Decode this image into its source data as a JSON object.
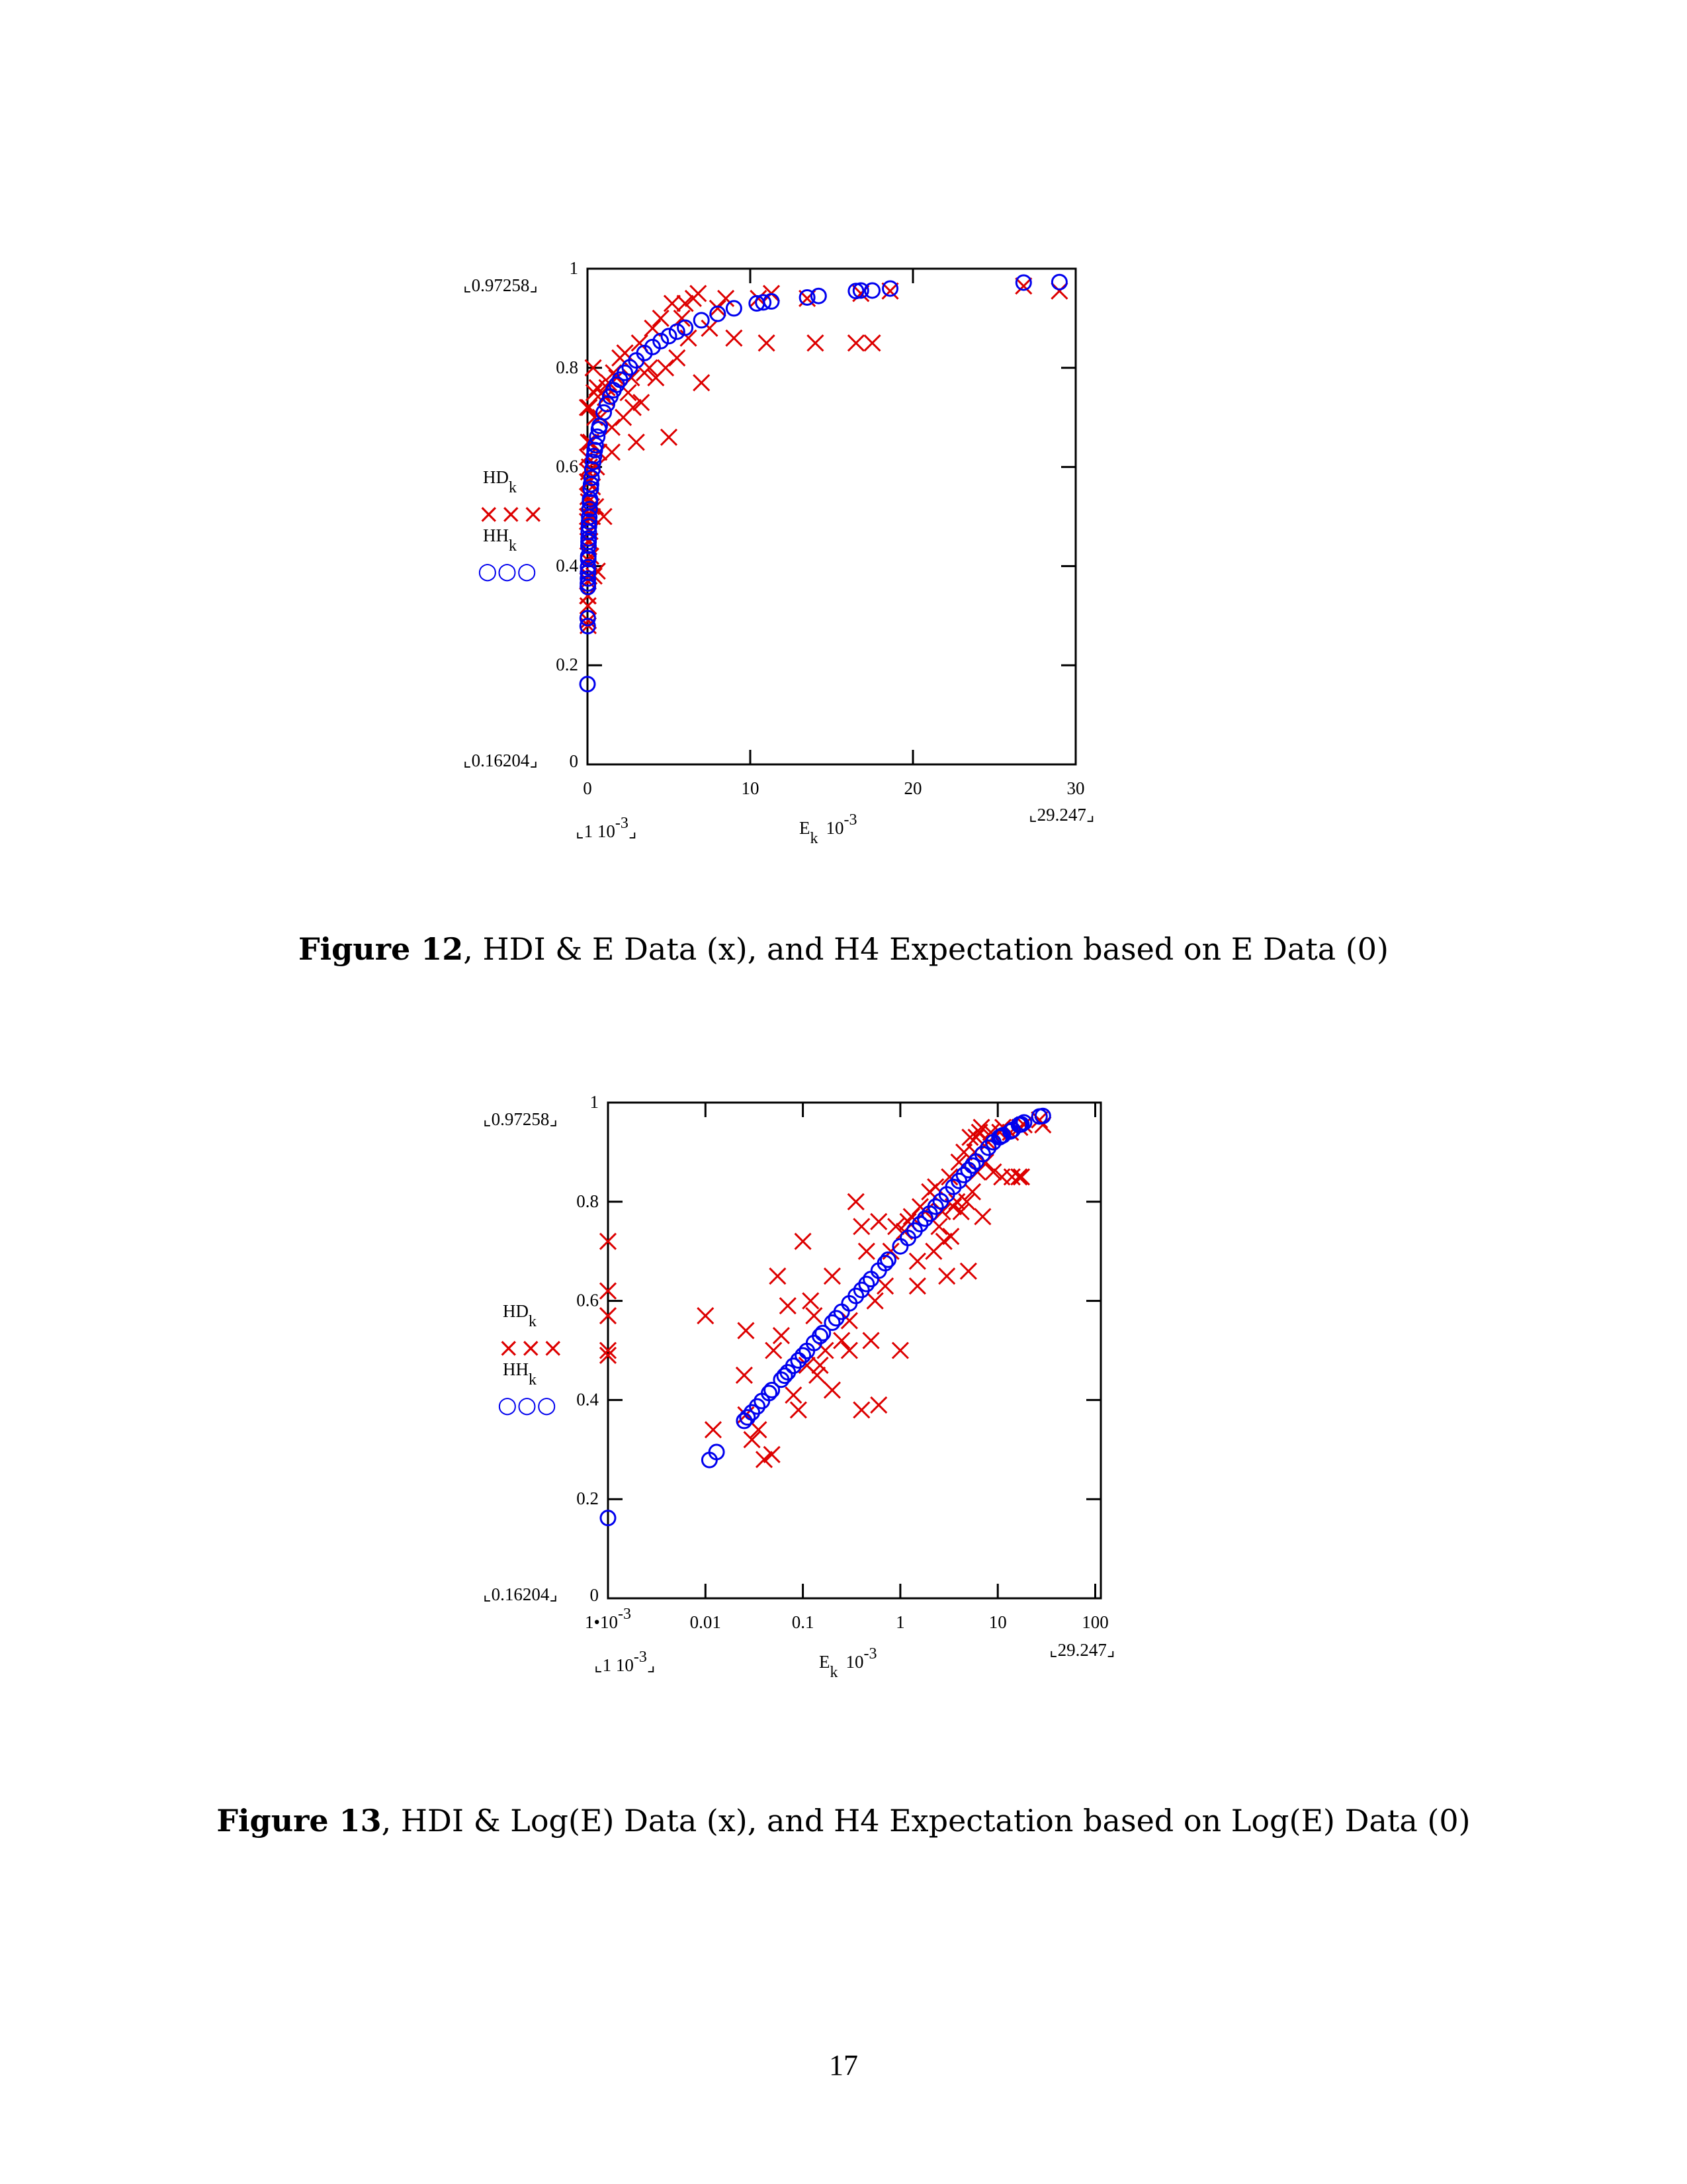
{
  "figures": [
    {
      "label": "Figure 12",
      "text": ", HDI & E Data (x), and H4 Expectation based on E Data (0)"
    },
    {
      "label": "Figure 13",
      "text": ", HDI & Log(E) Data (x), and H4 Expectation based on Log(E) Data (0)"
    }
  ],
  "page_number": "17",
  "colors": {
    "hd": "#dd0000",
    "hh": "#0000ee"
  },
  "chart_data": {
    "type": "scatter",
    "legend": {
      "hd": {
        "name": "HD",
        "sub": "k",
        "marker": "×××"
      },
      "hh": {
        "name": "HH",
        "sub": "k",
        "marker": "○○○"
      },
      "placement": "left"
    },
    "range_markers": {
      "y_max": "0.97258",
      "y_min": "0.16204",
      "x_min": "1 10",
      "x_min_exp": "-3",
      "x_max": "29.247"
    },
    "xlabel": {
      "base": "E",
      "sub": "k",
      "mult": "10",
      "exp": "-3"
    },
    "charts": [
      {
        "name": "Figure 12",
        "xscale": "linear",
        "xlim": [
          0,
          30
        ],
        "ylim": [
          0,
          1
        ],
        "xticks": [
          {
            "v": 0,
            "label": "0"
          },
          {
            "v": 10,
            "label": "10"
          },
          {
            "v": 20,
            "label": "20"
          },
          {
            "v": 30,
            "label": "30"
          }
        ],
        "yticks": [
          {
            "v": 0,
            "label": "0"
          },
          {
            "v": 0.2,
            "label": "0.2"
          },
          {
            "v": 0.4,
            "label": "0.4"
          },
          {
            "v": 0.6,
            "label": "0.6"
          },
          {
            "v": 0.8,
            "label": "0.8"
          },
          {
            "v": 1,
            "label": "1"
          }
        ]
      },
      {
        "name": "Figure 13",
        "xscale": "log",
        "xlim": [
          0.001,
          100
        ],
        "ylim": [
          0,
          1
        ],
        "xticks": [
          {
            "v": 0.001,
            "label": "1•10",
            "exp": "-3"
          },
          {
            "v": 0.01,
            "label": "0.01"
          },
          {
            "v": 0.1,
            "label": "0.1"
          },
          {
            "v": 1,
            "label": "1"
          },
          {
            "v": 10,
            "label": "10"
          },
          {
            "v": 100,
            "label": "100"
          }
        ],
        "yticks": [
          {
            "v": 0,
            "label": "0"
          },
          {
            "v": 0.2,
            "label": "0.2"
          },
          {
            "v": 0.4,
            "label": "0.4"
          },
          {
            "v": 0.6,
            "label": "0.6"
          },
          {
            "v": 0.8,
            "label": "0.8"
          },
          {
            "v": 1,
            "label": "1"
          }
        ]
      }
    ],
    "series": [
      {
        "key": "hh",
        "name": "HH_k",
        "marker": "circle",
        "points": [
          [
            0.001,
            0.162
          ],
          [
            0.011,
            0.279
          ],
          [
            0.013,
            0.295
          ],
          [
            0.025,
            0.358
          ],
          [
            0.027,
            0.365
          ],
          [
            0.03,
            0.375
          ],
          [
            0.034,
            0.387
          ],
          [
            0.038,
            0.398
          ],
          [
            0.045,
            0.414
          ],
          [
            0.048,
            0.42
          ],
          [
            0.06,
            0.441
          ],
          [
            0.065,
            0.449
          ],
          [
            0.07,
            0.456
          ],
          [
            0.08,
            0.469
          ],
          [
            0.09,
            0.48
          ],
          [
            0.1,
            0.49
          ],
          [
            0.11,
            0.499
          ],
          [
            0.13,
            0.515
          ],
          [
            0.15,
            0.529
          ],
          [
            0.16,
            0.535
          ],
          [
            0.2,
            0.556
          ],
          [
            0.22,
            0.565
          ],
          [
            0.25,
            0.578
          ],
          [
            0.3,
            0.595
          ],
          [
            0.35,
            0.61
          ],
          [
            0.4,
            0.622
          ],
          [
            0.45,
            0.634
          ],
          [
            0.5,
            0.644
          ],
          [
            0.6,
            0.661
          ],
          [
            0.7,
            0.676
          ],
          [
            0.75,
            0.683
          ],
          [
            1.0,
            0.71
          ],
          [
            1.2,
            0.727
          ],
          [
            1.4,
            0.742
          ],
          [
            1.6,
            0.755
          ],
          [
            1.8,
            0.766
          ],
          [
            2.0,
            0.776
          ],
          [
            2.3,
            0.79
          ],
          [
            2.6,
            0.801
          ],
          [
            3.0,
            0.815
          ],
          [
            3.5,
            0.83
          ],
          [
            4.0,
            0.842
          ],
          [
            4.5,
            0.854
          ],
          [
            5.0,
            0.864
          ],
          [
            5.5,
            0.873
          ],
          [
            6.0,
            0.881
          ],
          [
            7.0,
            0.896
          ],
          [
            8.0,
            0.909
          ],
          [
            9.0,
            0.92
          ],
          [
            10.4,
            0.93
          ],
          [
            10.8,
            0.932
          ],
          [
            11.3,
            0.934
          ],
          [
            13.5,
            0.942
          ],
          [
            14.2,
            0.945
          ],
          [
            16.5,
            0.955
          ],
          [
            16.8,
            0.956
          ],
          [
            17.5,
            0.956
          ],
          [
            18.6,
            0.96
          ],
          [
            26.8,
            0.972
          ],
          [
            29.0,
            0.973
          ]
        ]
      },
      {
        "key": "hd",
        "name": "HD_k",
        "marker": "cross",
        "points": [
          [
            0.001,
            0.72
          ],
          [
            0.001,
            0.62
          ],
          [
            0.001,
            0.57
          ],
          [
            0.001,
            0.5
          ],
          [
            0.001,
            0.49
          ],
          [
            0.01,
            0.57
          ],
          [
            0.012,
            0.34
          ],
          [
            0.025,
            0.45
          ],
          [
            0.026,
            0.54
          ],
          [
            0.026,
            0.37
          ],
          [
            0.03,
            0.32
          ],
          [
            0.035,
            0.34
          ],
          [
            0.04,
            0.28
          ],
          [
            0.048,
            0.29
          ],
          [
            0.05,
            0.5
          ],
          [
            0.055,
            0.65
          ],
          [
            0.06,
            0.53
          ],
          [
            0.07,
            0.59
          ],
          [
            0.08,
            0.41
          ],
          [
            0.09,
            0.38
          ],
          [
            0.1,
            0.72
          ],
          [
            0.11,
            0.47
          ],
          [
            0.12,
            0.6
          ],
          [
            0.13,
            0.57
          ],
          [
            0.14,
            0.45
          ],
          [
            0.15,
            0.47
          ],
          [
            0.17,
            0.5
          ],
          [
            0.2,
            0.42
          ],
          [
            0.2,
            0.65
          ],
          [
            0.25,
            0.52
          ],
          [
            0.3,
            0.5
          ],
          [
            0.3,
            0.56
          ],
          [
            0.35,
            0.8
          ],
          [
            0.4,
            0.38
          ],
          [
            0.4,
            0.75
          ],
          [
            0.45,
            0.7
          ],
          [
            0.5,
            0.52
          ],
          [
            0.55,
            0.6
          ],
          [
            0.6,
            0.39
          ],
          [
            0.6,
            0.76
          ],
          [
            0.7,
            0.63
          ],
          [
            0.8,
            0.7
          ],
          [
            0.9,
            0.75
          ],
          [
            1.0,
            0.5
          ],
          [
            1.1,
            0.74
          ],
          [
            1.2,
            0.76
          ],
          [
            1.3,
            0.77
          ],
          [
            1.5,
            0.68
          ],
          [
            1.5,
            0.63
          ],
          [
            1.6,
            0.79
          ],
          [
            1.8,
            0.78
          ],
          [
            2.0,
            0.82
          ],
          [
            2.2,
            0.7
          ],
          [
            2.3,
            0.83
          ],
          [
            2.5,
            0.75
          ],
          [
            2.7,
            0.78
          ],
          [
            2.8,
            0.72
          ],
          [
            3.0,
            0.65
          ],
          [
            3.2,
            0.85
          ],
          [
            3.3,
            0.73
          ],
          [
            3.5,
            0.79
          ],
          [
            3.8,
            0.8
          ],
          [
            4.0,
            0.88
          ],
          [
            4.2,
            0.78
          ],
          [
            4.5,
            0.9
          ],
          [
            4.8,
            0.8
          ],
          [
            5.0,
            0.66
          ],
          [
            5.2,
            0.93
          ],
          [
            5.5,
            0.82
          ],
          [
            5.8,
            0.9
          ],
          [
            6.0,
            0.93
          ],
          [
            6.2,
            0.86
          ],
          [
            6.5,
            0.94
          ],
          [
            6.8,
            0.95
          ],
          [
            7.0,
            0.77
          ],
          [
            7.5,
            0.88
          ],
          [
            8.0,
            0.92
          ],
          [
            8.5,
            0.94
          ],
          [
            9.0,
            0.86
          ],
          [
            10.5,
            0.94
          ],
          [
            11.0,
            0.85
          ],
          [
            11.3,
            0.95
          ],
          [
            13.5,
            0.94
          ],
          [
            14.0,
            0.85
          ],
          [
            16.5,
            0.85
          ],
          [
            16.8,
            0.95
          ],
          [
            17.5,
            0.85
          ],
          [
            18.6,
            0.955
          ],
          [
            26.8,
            0.965
          ],
          [
            29.0,
            0.955
          ]
        ]
      }
    ]
  }
}
